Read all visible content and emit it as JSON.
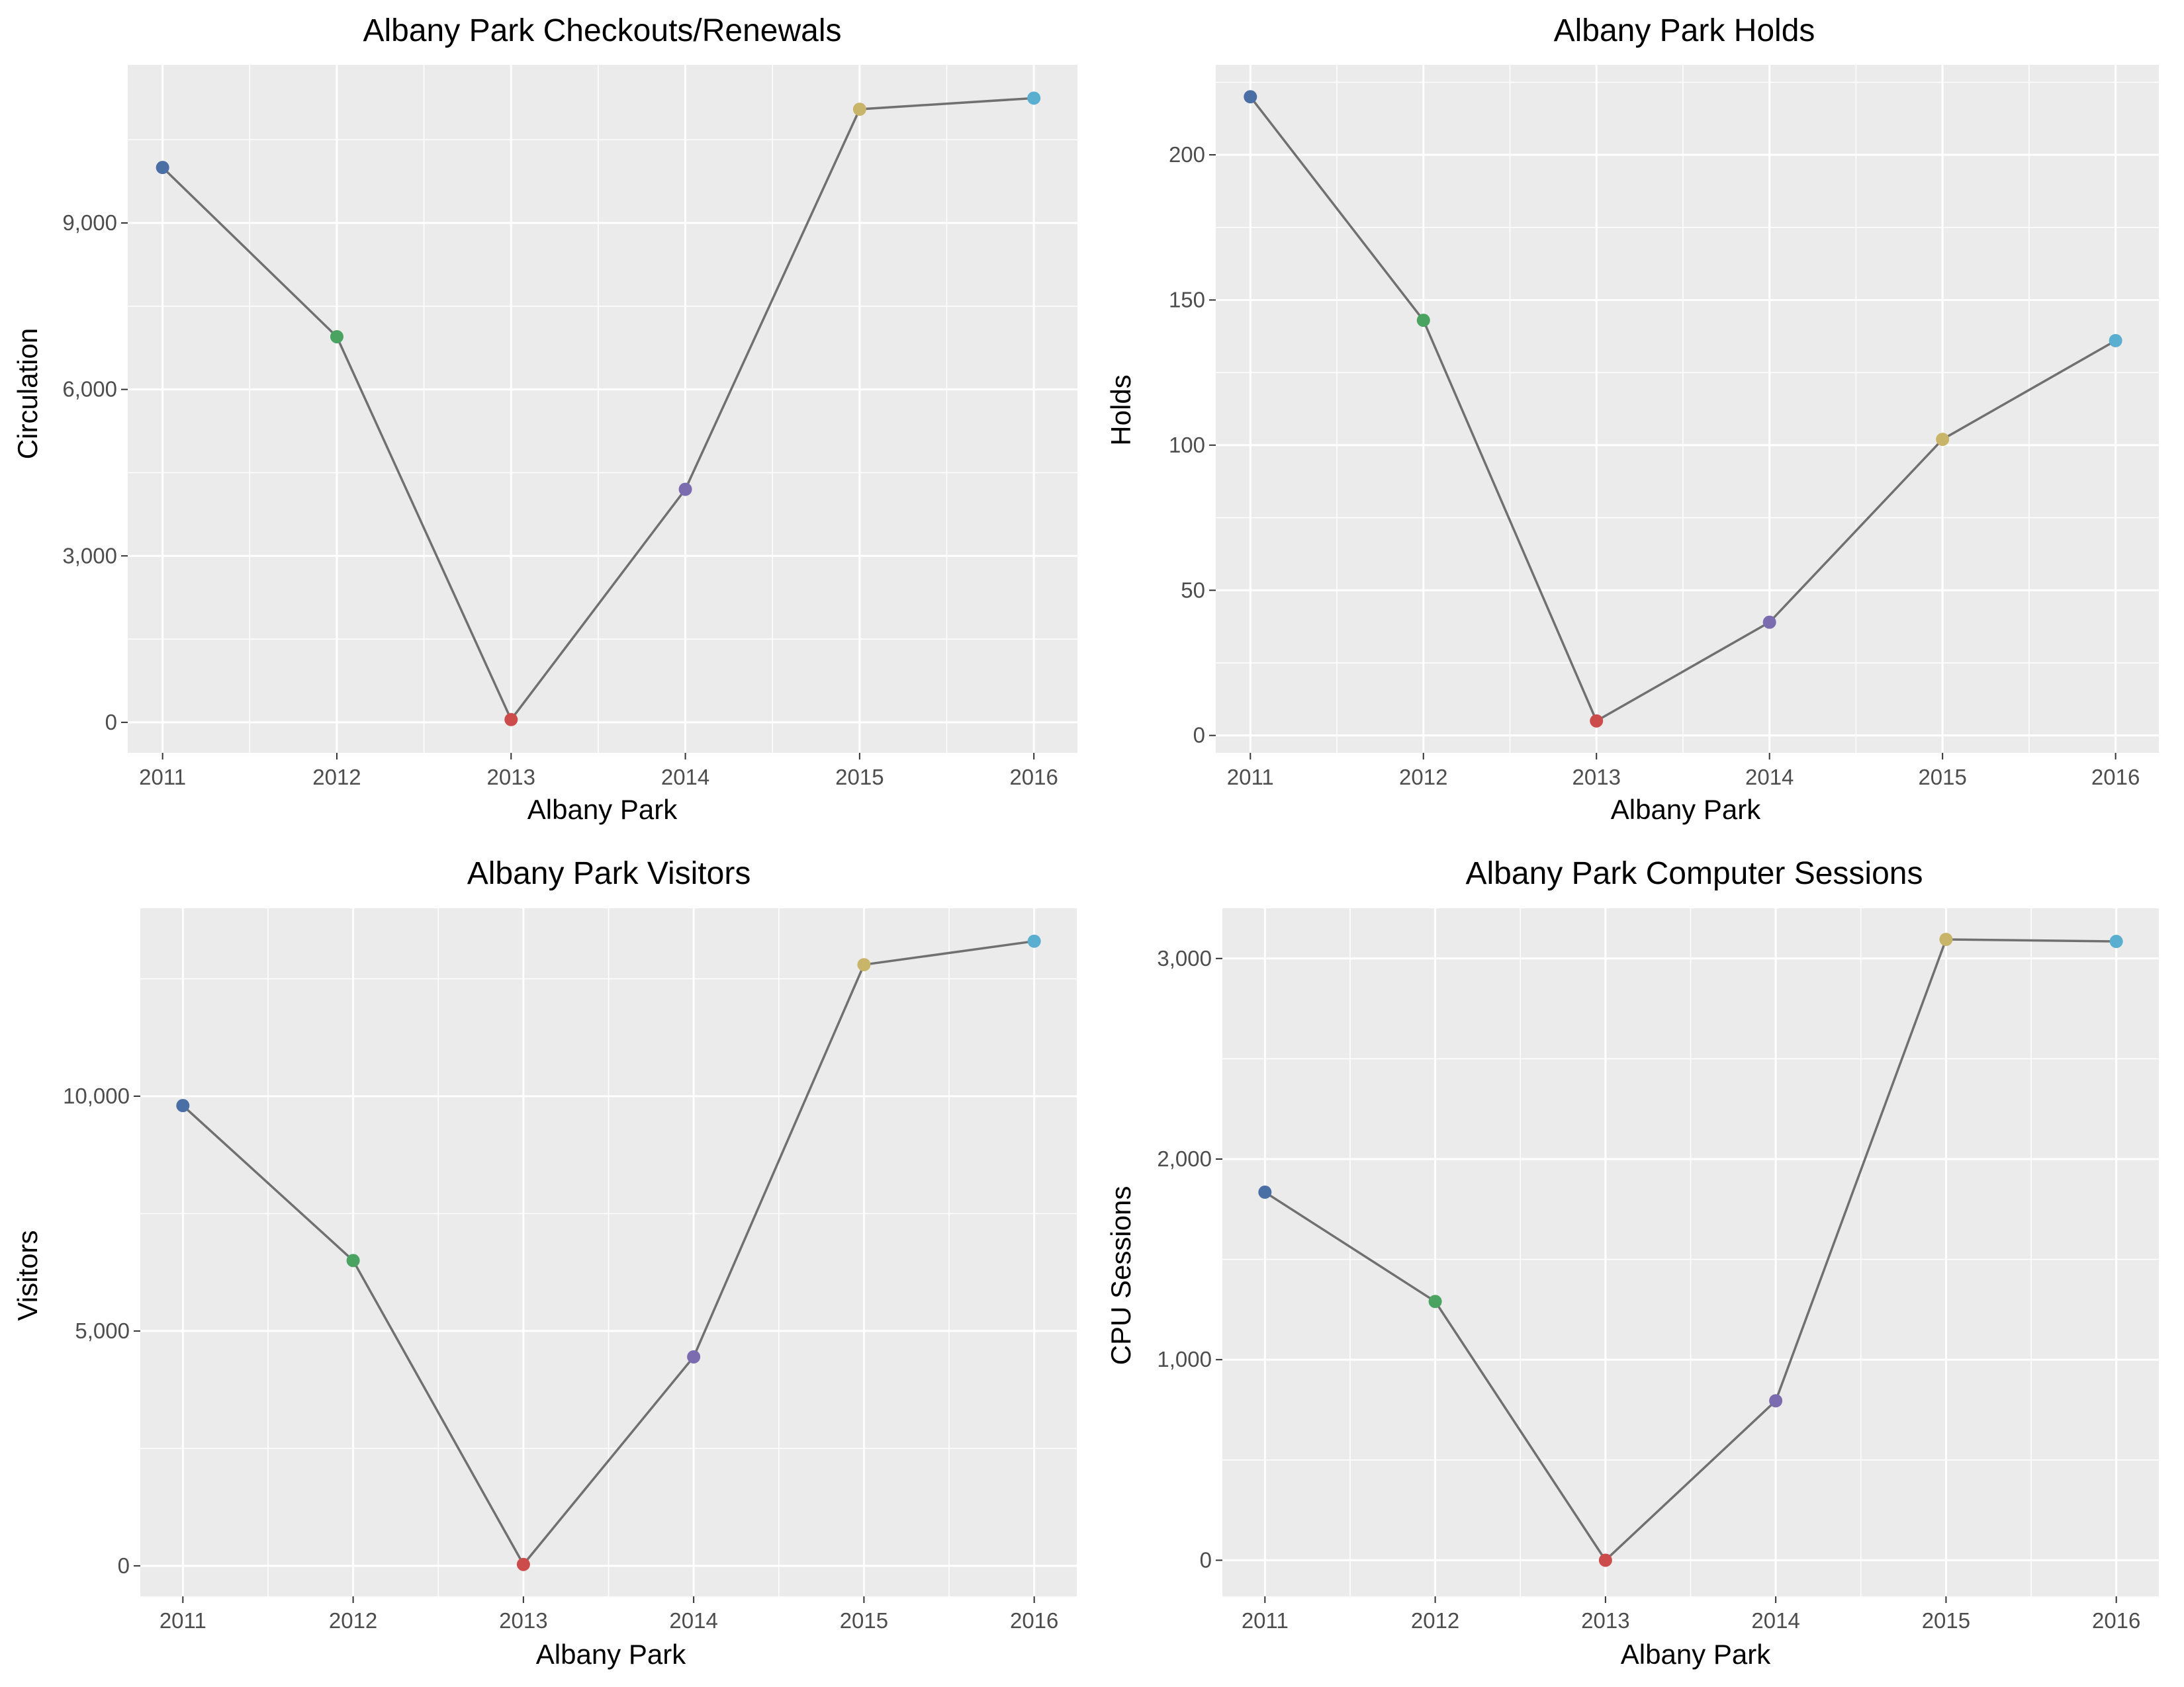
{
  "chart_data": [
    {
      "type": "line",
      "title": "Albany Park Checkouts/Renewals",
      "xlabel": "Albany Park",
      "ylabel": "Circulation",
      "x": [
        2011,
        2012,
        2013,
        2014,
        2015,
        2016
      ],
      "x_tick_labels": [
        "2011",
        "2012",
        "2013",
        "2014",
        "2015",
        "2016"
      ],
      "values": [
        10000,
        6950,
        50,
        4200,
        11050,
        11250
      ],
      "y_ticks": [
        0,
        3000,
        6000,
        9000
      ],
      "y_tick_labels": [
        "0",
        "3,000",
        "6,000",
        "9,000"
      ],
      "xlim": [
        2010.8,
        2016.25
      ],
      "ylim": [
        -550,
        11850
      ],
      "grid": true,
      "legend": "none"
    },
    {
      "type": "line",
      "title": "Albany Park Holds",
      "xlabel": "Albany Park",
      "ylabel": "Holds",
      "x": [
        2011,
        2012,
        2013,
        2014,
        2015,
        2016
      ],
      "x_tick_labels": [
        "2011",
        "2012",
        "2013",
        "2014",
        "2015",
        "2016"
      ],
      "values": [
        220,
        143,
        5,
        39,
        102,
        136
      ],
      "y_ticks": [
        0,
        50,
        100,
        150,
        200
      ],
      "y_tick_labels": [
        "0",
        "50",
        "100",
        "150",
        "200"
      ],
      "xlim": [
        2010.8,
        2016.25
      ],
      "ylim": [
        -6,
        231
      ],
      "grid": true,
      "legend": "none"
    },
    {
      "type": "line",
      "title": "Albany Park Visitors",
      "xlabel": "Albany Park",
      "ylabel": "Visitors",
      "x": [
        2011,
        2012,
        2013,
        2014,
        2015,
        2016
      ],
      "x_tick_labels": [
        "2011",
        "2012",
        "2013",
        "2014",
        "2015",
        "2016"
      ],
      "values": [
        9800,
        6500,
        30,
        4450,
        12800,
        13300
      ],
      "y_ticks": [
        0,
        5000,
        10000
      ],
      "y_tick_labels": [
        "0",
        "5,000",
        "10,000"
      ],
      "xlim": [
        2010.75,
        2016.25
      ],
      "ylim": [
        -650,
        14000
      ],
      "grid": true,
      "legend": "none"
    },
    {
      "type": "line",
      "title": "Albany Park Computer Sessions",
      "xlabel": "Albany Park",
      "ylabel": "CPU Sessions",
      "x": [
        2011,
        2012,
        2013,
        2014,
        2015,
        2016
      ],
      "x_tick_labels": [
        "2011",
        "2012",
        "2013",
        "2014",
        "2015",
        "2016"
      ],
      "values": [
        1835,
        1290,
        0,
        795,
        3095,
        3085
      ],
      "y_ticks": [
        0,
        1000,
        2000,
        3000
      ],
      "y_tick_labels": [
        "0",
        "1,000",
        "2,000",
        "3,000"
      ],
      "xlim": [
        2010.75,
        2016.25
      ],
      "ylim": [
        -180,
        3250
      ],
      "grid": true,
      "legend": "none"
    }
  ],
  "colors": {
    "point_colors": [
      "#4a6fa5",
      "#4aa361",
      "#cc4c4c",
      "#7b6cb0",
      "#c9b56a",
      "#5aaecf"
    ],
    "line": "#707070",
    "panel": "#ebebeb",
    "grid": "#ffffff"
  }
}
